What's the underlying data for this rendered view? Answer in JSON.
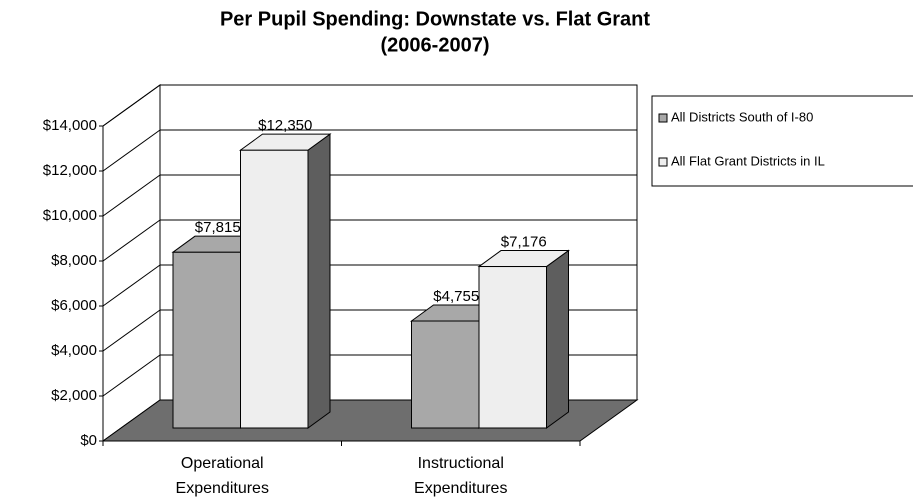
{
  "chart_data": {
    "type": "bar3d",
    "title": "Per Pupil Spending: Downstate vs. Flat Grant",
    "subtitle": "(2006-2007)",
    "categories": [
      "Operational Expenditures",
      "Instructional Expenditures"
    ],
    "series": [
      {
        "name": "All Districts South of I-80",
        "color": "#a8a8a8",
        "values": [
          7815,
          4755
        ],
        "value_labels": [
          "$7,815",
          "$4,755"
        ]
      },
      {
        "name": "All Flat Grant Districts in IL",
        "color": "#eeeeee",
        "values": [
          12350,
          7176
        ],
        "value_labels": [
          "$12,350",
          "$7,176"
        ]
      }
    ],
    "ylim": [
      0,
      14000
    ],
    "yticks": [
      {
        "value": 0,
        "label": "$0"
      },
      {
        "value": 2000,
        "label": "$2,000"
      },
      {
        "value": 4000,
        "label": "$4,000"
      },
      {
        "value": 6000,
        "label": "$6,000"
      },
      {
        "value": 8000,
        "label": "$8,000"
      },
      {
        "value": 10000,
        "label": "$10,000"
      },
      {
        "value": 12000,
        "label": "$12,000"
      },
      {
        "value": 14000,
        "label": "$14,000"
      }
    ],
    "grid": true
  }
}
